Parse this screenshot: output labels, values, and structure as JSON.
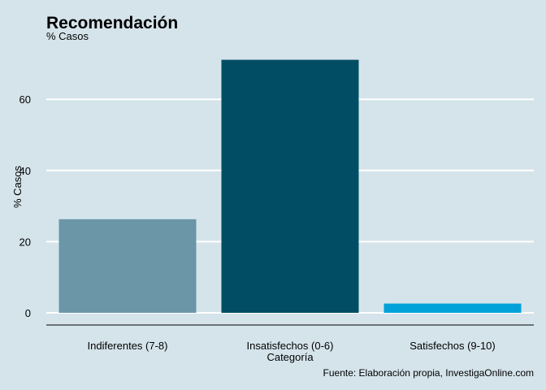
{
  "chart_data": {
    "type": "bar",
    "title": "Recomendación",
    "subtitle": "% Casos",
    "xlabel": "Categoría",
    "ylabel": "% Casos",
    "caption": "Fuente: Elaboración propia, InvestigaOnline.com",
    "categories": [
      "Indiferentes (7-8)",
      "Insatisfechos (0-6)",
      "Satisfechos (9-10)"
    ],
    "values": [
      26.3,
      71.1,
      2.6
    ],
    "colors": [
      "#6a96a8",
      "#014d64",
      "#01a2d9"
    ],
    "ylim": [
      0,
      75
    ],
    "yticks": [
      0,
      20,
      40,
      60
    ],
    "grid": "horizontal",
    "background": "#d5e4eb",
    "gridline_color": "#ffffff"
  }
}
